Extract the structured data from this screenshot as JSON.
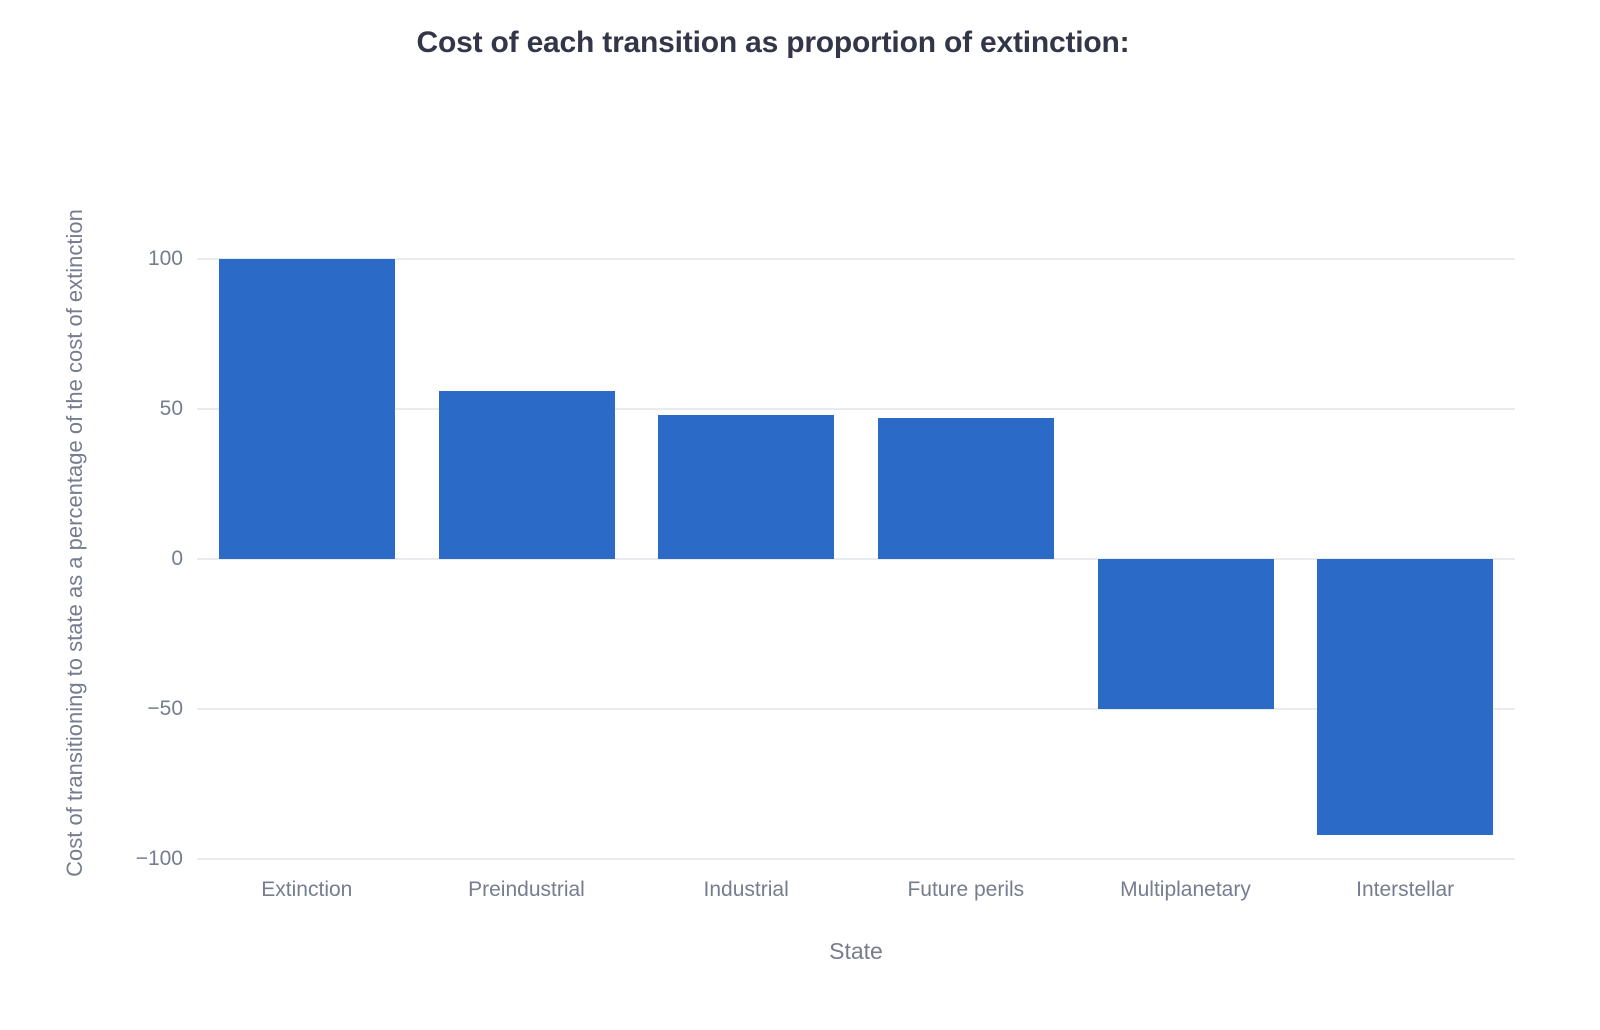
{
  "page": {
    "background_color": "#ffffff"
  },
  "chart_data": {
    "type": "bar",
    "title": "Cost of each transition as proportion of extinction:",
    "xlabel": "State",
    "ylabel": "Cost of transitioning to state as a percentage of the cost of extinction",
    "categories": [
      "Extinction",
      "Preindustrial",
      "Industrial",
      "Future perils",
      "Multiplanetary",
      "Interstellar"
    ],
    "values": [
      100,
      56,
      48,
      47,
      -50,
      -92
    ],
    "y_ticks": [
      {
        "value": 100,
        "label": "100"
      },
      {
        "value": 50,
        "label": "50"
      },
      {
        "value": 0,
        "label": "0"
      },
      {
        "value": -50,
        "label": "−50"
      },
      {
        "value": -100,
        "label": "−100"
      }
    ],
    "ylim": [
      -100,
      100
    ],
    "grid": true,
    "legend_position": "none",
    "bar_color": "#2b6ac6",
    "title_color": "#333649",
    "axis_text_color": "#757d8f",
    "gridline_color": "#e9ebf1"
  }
}
